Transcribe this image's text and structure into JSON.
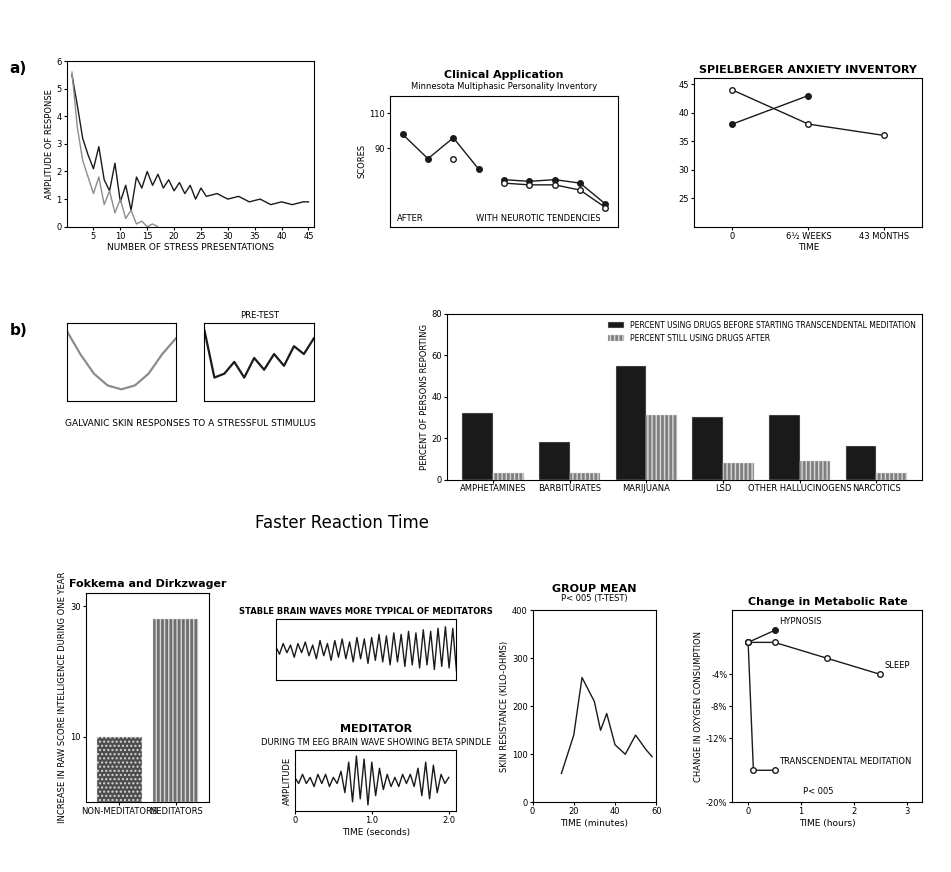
{
  "captions": [
    "Faster Reaction Time"
  ],
  "chart_data": [
    {
      "type": "line",
      "label": "a)",
      "xlabel": "NUMBER OF STRESS PRESENTATIONS",
      "ylabel": "AMPLITUDE OF RESPONSE",
      "xlim": [
        0,
        46
      ],
      "xticks": [
        5,
        10,
        15,
        20,
        25,
        30,
        35,
        40,
        45
      ],
      "ylim": [
        0,
        6
      ],
      "yticks": [
        0,
        1,
        2,
        3,
        4,
        5,
        6
      ],
      "series": [
        {
          "color": "#1a1a1a",
          "x": [
            1,
            2,
            3,
            4,
            5,
            6,
            7,
            8,
            9,
            10,
            11,
            12,
            13,
            14,
            15,
            16,
            17,
            18,
            19,
            20,
            21,
            22,
            23,
            24,
            25,
            26,
            28,
            30,
            32,
            34,
            36,
            38,
            40,
            42,
            44,
            45
          ],
          "values": [
            5.5,
            4.4,
            3.2,
            2.6,
            2.1,
            2.9,
            1.7,
            1.3,
            2.3,
            0.9,
            1.5,
            0.6,
            1.8,
            1.4,
            2.0,
            1.5,
            1.9,
            1.4,
            1.7,
            1.3,
            1.6,
            1.2,
            1.5,
            1.0,
            1.4,
            1.1,
            1.2,
            1.0,
            1.1,
            0.9,
            1.0,
            0.8,
            0.9,
            0.8,
            0.9,
            0.9
          ]
        },
        {
          "color": "#8c8c8c",
          "x": [
            1,
            2,
            3,
            4,
            5,
            6,
            7,
            8,
            9,
            10,
            11,
            12,
            13,
            14,
            15,
            16,
            17
          ],
          "values": [
            5.6,
            3.6,
            2.4,
            1.8,
            1.2,
            1.8,
            0.8,
            1.3,
            0.5,
            1.0,
            0.3,
            0.6,
            0.1,
            0.2,
            0.0,
            0.1,
            0.0
          ]
        }
      ]
    },
    {
      "type": "panels",
      "label": "b)",
      "caption": "GALVANIC SKIN RESPONSES TO A STRESSFUL STIMULUS",
      "annotations": [
        "PRE-TEST"
      ],
      "tick_labels": false,
      "ylim": [
        0,
        1
      ],
      "series": [
        {
          "color": "#8c8c8c",
          "values": [
            0.9,
            0.6,
            0.35,
            0.2,
            0.15,
            0.2,
            0.35,
            0.6,
            0.8
          ]
        },
        {
          "color": "#1a1a1a",
          "values": [
            0.9,
            0.3,
            0.35,
            0.5,
            0.3,
            0.55,
            0.4,
            0.6,
            0.45,
            0.7,
            0.6,
            0.8
          ]
        }
      ]
    },
    {
      "type": "line",
      "title": "Clinical Application",
      "subtitle": "Minnesota Multiphasic Personality Inventory",
      "ylabel": "SCORES",
      "annotations": [
        "WITH NEUROTIC TENDENCIES",
        "AFTER"
      ],
      "categories": [
        null,
        null,
        null,
        null,
        null,
        null,
        null,
        null,
        null
      ],
      "ylim": [
        45,
        120
      ],
      "yticks": [
        90,
        110
      ],
      "series": [
        {
          "color": "#1a1a1a",
          "marker": "circle",
          "values": [
            98,
            84,
            96,
            78,
            null,
            null,
            null,
            null,
            null
          ]
        },
        {
          "color": "#1a1a1a",
          "marker": "open_circle",
          "values": [
            null,
            null,
            84,
            null,
            null,
            null,
            null,
            null,
            null
          ]
        },
        {
          "color": "#1a1a1a",
          "marker": "circle",
          "values": [
            null,
            null,
            null,
            null,
            72,
            71,
            72,
            70,
            58
          ]
        },
        {
          "color": "#1a1a1a",
          "marker": "open_circle",
          "values": [
            null,
            null,
            null,
            null,
            70,
            69,
            69,
            66,
            56
          ]
        }
      ]
    },
    {
      "type": "line",
      "title": "SPIELBERGER ANXIETY INVENTORY",
      "xlabel": "TIME",
      "categories": [
        "0",
        "6½ WEEKS",
        "43 MONTHS"
      ],
      "ylim": [
        20,
        46
      ],
      "yticks": [
        25,
        30,
        35,
        40,
        45
      ],
      "series": [
        {
          "color": "#1a1a1a",
          "marker": "open_circle",
          "values": [
            44,
            38,
            36
          ]
        },
        {
          "color": "#1a1a1a",
          "marker": "circle",
          "values": [
            38,
            43,
            null
          ]
        }
      ]
    },
    {
      "type": "bar",
      "ylabel": "PERCENT OF PERSONS REPORTING",
      "categories": [
        "AMPHETAMINES",
        "BARBITURATES",
        "MARIJUANA",
        "LSD",
        "OTHER HALLUCINOGENS",
        "NARCOTICS"
      ],
      "ylim": [
        0,
        80
      ],
      "yticks": [
        0,
        20,
        40,
        60,
        80
      ],
      "legend": "upper right",
      "series": [
        {
          "name": "PERCENT USING DRUGS BEFORE STARTING TRANSCENDENTAL MEDITATION",
          "color": "#1a1a1a",
          "values": [
            32,
            18,
            55,
            30,
            31,
            16
          ]
        },
        {
          "name": "PERCENT STILL USING DRUGS AFTER",
          "color": "#7f7f7f",
          "values": [
            3,
            3,
            31,
            8,
            9,
            3
          ]
        }
      ]
    },
    {
      "type": "bar",
      "title": "Fokkema and Dirkzwager",
      "ylabel": "INCREASE IN RAW SCORE INTELLIGENCE DURING ONE YEAR",
      "categories": [
        "NON-MEDITATORS",
        "MEDITATORS"
      ],
      "ylim": [
        0,
        32
      ],
      "yticks": [
        10,
        30
      ],
      "colors": [
        "#4d4d4d",
        "#6e6e6e"
      ],
      "values": [
        10,
        28
      ]
    },
    {
      "type": "line",
      "title": "STABLE BRAIN WAVES MORE TYPICAL OF MEDITATORS",
      "tick_labels": false,
      "ylim": [
        -1,
        1
      ],
      "series": [
        {
          "color": "#1a1a1a",
          "values": [
            0.1,
            -0.15,
            0.2,
            -0.1,
            0.15,
            -0.25,
            0.2,
            -0.1,
            0.25,
            -0.2,
            0.15,
            -0.3,
            0.3,
            -0.2,
            0.2,
            -0.35,
            0.3,
            -0.25,
            0.35,
            -0.3,
            0.25,
            -0.4,
            0.4,
            -0.3,
            0.35,
            -0.45,
            0.4,
            -0.35,
            0.5,
            -0.4,
            0.45,
            -0.5,
            0.55,
            -0.4,
            0.5,
            -0.55,
            0.6,
            -0.5,
            0.55,
            -0.6,
            0.65,
            -0.5,
            0.6,
            -0.65,
            0.7,
            -0.55,
            0.75,
            -0.6,
            0.7,
            -0.7
          ]
        }
      ]
    },
    {
      "type": "line",
      "title": "GROUP MEAN",
      "subtitle": "P< 005 (T-TEST)",
      "xlabel": "TIME (minutes)",
      "ylabel": "SKIN RESISTANCE (KILO-OHMS)",
      "xlim": [
        0,
        60
      ],
      "xticks": [
        0,
        20,
        40,
        60
      ],
      "ylim": [
        0,
        400
      ],
      "yticks": [
        0,
        100,
        200,
        300,
        400
      ],
      "series": [
        {
          "color": "#1a1a1a",
          "x": [
            14,
            20,
            24,
            30,
            33,
            36,
            40,
            45,
            50,
            55,
            58
          ],
          "values": [
            60,
            140,
            260,
            210,
            150,
            185,
            120,
            100,
            140,
            110,
            95
          ]
        }
      ]
    },
    {
      "type": "line",
      "title": "Change in Metabolic Rate",
      "xlabel": "TIME (hours)",
      "ylabel": "CHANGE IN OXYGEN CONSUMPTION",
      "annotations": [
        "P< 005"
      ],
      "xlim": [
        -0.3,
        3.3
      ],
      "xticks": [
        0,
        1,
        2,
        3
      ],
      "ylim": [
        -20,
        4
      ],
      "yticks": [
        {
          "value": -4,
          "label": "-4%"
        },
        {
          "value": -8,
          "label": "-8%"
        },
        {
          "value": -12,
          "label": "-12%"
        },
        {
          "value": -20,
          "label": "-20%"
        }
      ],
      "series": [
        {
          "name": "HYPNOSIS",
          "color": "#1a1a1a",
          "marker": "circle",
          "x": [
            0,
            0.5
          ],
          "values": [
            0,
            1.5
          ]
        },
        {
          "name": "SLEEP",
          "color": "#1a1a1a",
          "marker": "open_circle",
          "x": [
            0,
            0.5,
            1.5,
            2.5
          ],
          "values": [
            0,
            0,
            -2,
            -4
          ]
        },
        {
          "name": "TRANSCENDENTAL MEDITATION",
          "color": "#1a1a1a",
          "marker": "open_circle",
          "x": [
            0,
            0.1,
            0.5
          ],
          "values": [
            0,
            -16,
            -16
          ]
        }
      ]
    },
    {
      "type": "line",
      "title": "MEDITATOR",
      "subtitle": "DURING TM EEG BRAIN WAVE SHOWING BETA SPINDLE",
      "xlabel": "TIME (seconds)",
      "ylabel": "AMPLITUDE",
      "x": [
        0,
        0.05,
        0.1,
        0.15,
        0.2,
        0.25,
        0.3,
        0.35,
        0.4,
        0.45,
        0.5,
        0.55,
        0.6,
        0.65,
        0.7,
        0.75,
        0.8,
        0.85,
        0.9,
        0.95,
        1.0,
        1.05,
        1.1,
        1.15,
        1.2,
        1.25,
        1.3,
        1.35,
        1.4,
        1.45,
        1.5,
        1.55,
        1.6,
        1.65,
        1.7,
        1.75,
        1.8,
        1.85,
        1.9,
        1.95,
        2.0
      ],
      "xlim": [
        0,
        2.1
      ],
      "xticks": [
        0,
        1.0,
        2.0
      ],
      "ylim": [
        -0.5,
        0.5
      ],
      "tick_labels": "x",
      "series": [
        {
          "color": "#1a1a1a",
          "values": [
            0.05,
            -0.05,
            0.1,
            -0.05,
            0.05,
            -0.1,
            0.1,
            -0.05,
            0.1,
            -0.1,
            0.05,
            -0.05,
            0.15,
            -0.2,
            0.3,
            -0.35,
            0.4,
            -0.3,
            0.35,
            -0.4,
            0.3,
            -0.25,
            0.2,
            -0.15,
            0.1,
            -0.1,
            0.05,
            -0.1,
            0.1,
            -0.05,
            0.1,
            -0.1,
            0.2,
            -0.25,
            0.3,
            -0.3,
            0.25,
            -0.2,
            0.1,
            -0.05,
            0.05
          ]
        }
      ]
    }
  ]
}
